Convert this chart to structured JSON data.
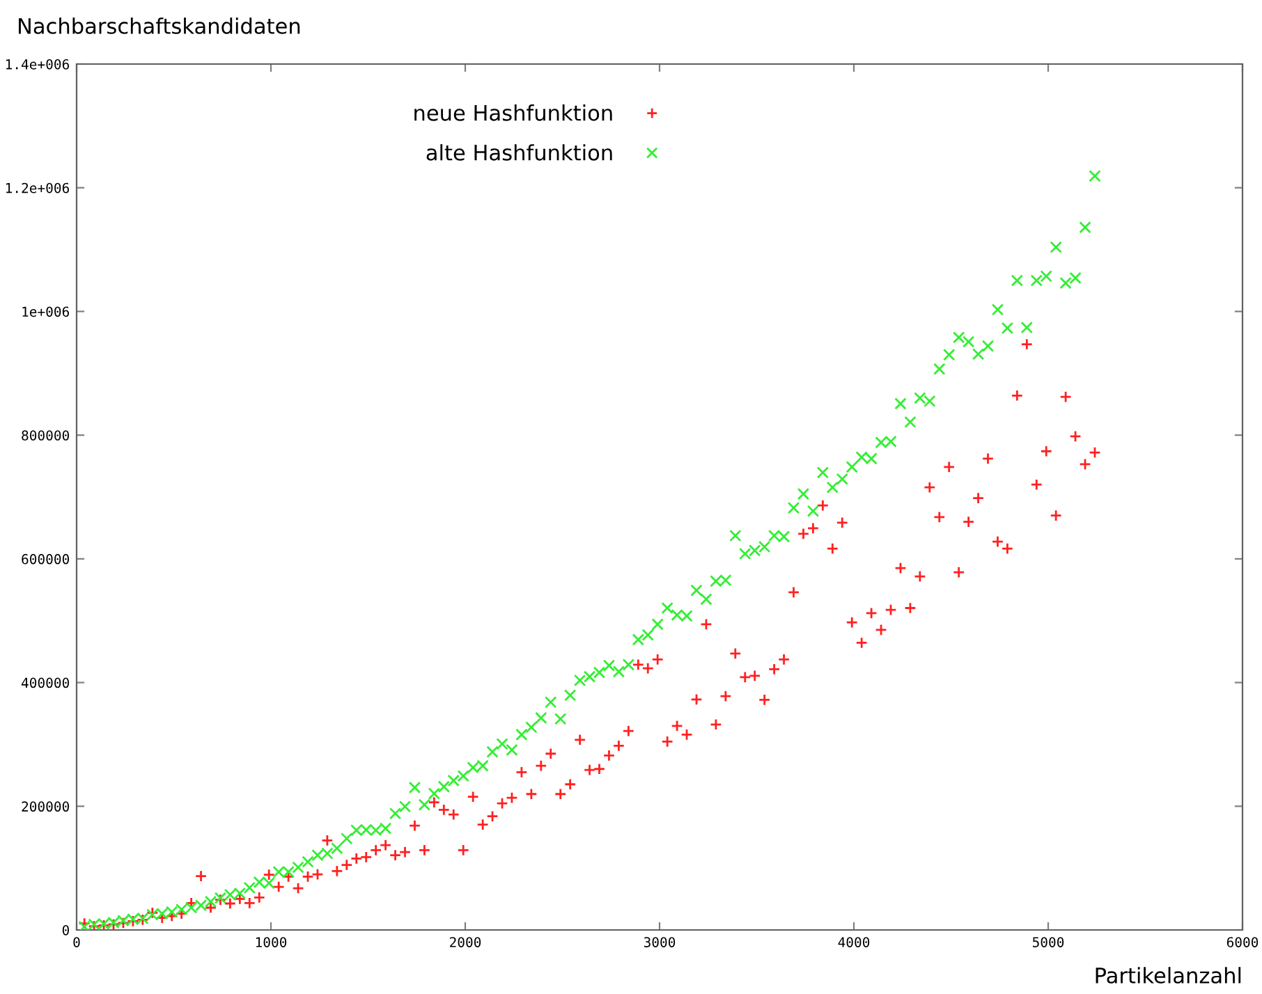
{
  "chart_data": {
    "type": "scatter",
    "ylabel": "Nachbarschaftskandidaten",
    "xlabel": "Partikelanzahl",
    "x": [
      40,
      90,
      140,
      190,
      240,
      290,
      340,
      390,
      440,
      490,
      540,
      590,
      640,
      690,
      740,
      790,
      840,
      890,
      940,
      990,
      1040,
      1090,
      1140,
      1190,
      1240,
      1290,
      1340,
      1390,
      1440,
      1490,
      1540,
      1590,
      1640,
      1690,
      1740,
      1790,
      1840,
      1890,
      1940,
      1990,
      2040,
      2090,
      2140,
      2190,
      2240,
      2290,
      2340,
      2390,
      2440,
      2490,
      2540,
      2590,
      2640,
      2690,
      2740,
      2790,
      2840,
      2890,
      2940,
      2990,
      3040,
      3090,
      3140,
      3190,
      3240,
      3290,
      3340,
      3390,
      3440,
      3490,
      3540,
      3590,
      3640,
      3690,
      3740,
      3790,
      3840,
      3890,
      3940,
      3990,
      4040,
      4090,
      4140,
      4190,
      4240,
      4290,
      4340,
      4390,
      4440,
      4490,
      4540,
      4590,
      4640,
      4690,
      4740,
      4790,
      4840,
      4890,
      4940,
      4990,
      5040,
      5090,
      5140,
      5190,
      5240
    ],
    "series": [
      {
        "name": "neue Hashfunktion",
        "color": "#ff2020",
        "marker": "plus",
        "values": [
          10500,
          6000,
          7500,
          9000,
          11250,
          14250,
          16500,
          27750,
          19500,
          22500,
          26250,
          43500,
          87000,
          36000,
          48750,
          42750,
          50250,
          43500,
          52500,
          89250,
          69750,
          86250,
          67500,
          86250,
          90000,
          144750,
          95250,
          105000,
          115500,
          117750,
          129000,
          137250,
          120750,
          126000,
          168750,
          129000,
          206250,
          194250,
          186750,
          129000,
          215250,
          170250,
          183750,
          204750,
          213750,
          255000,
          219750,
          265500,
          285000,
          219750,
          235500,
          307500,
          258750,
          260250,
          282000,
          297750,
          321750,
          429000,
          423000,
          437250,
          304500,
          330000,
          315750,
          372750,
          494250,
          332250,
          378000,
          447000,
          408750,
          411000,
          372000,
          421500,
          437250,
          546000,
          640500,
          649500,
          686250,
          616500,
          658500,
          497250,
          464250,
          512250,
          485250,
          517500,
          585000,
          520500,
          571500,
          715500,
          667500,
          748500,
          578250,
          660000,
          698250,
          762000,
          627750,
          616500,
          864000,
          947000,
          720000,
          774000,
          670000,
          862000,
          798000,
          753000,
          772000
        ]
      },
      {
        "name": "alte Hashfunktion",
        "color": "#33ee33",
        "marker": "cross",
        "values": [
          5250,
          9000,
          9750,
          12000,
          15000,
          17250,
          18750,
          24750,
          26250,
          29250,
          33000,
          36000,
          39750,
          45750,
          51750,
          57000,
          59250,
          68250,
          77250,
          75750,
          93750,
          93750,
          101250,
          110250,
          120750,
          123750,
          132000,
          147750,
          161250,
          162000,
          161250,
          164250,
          188250,
          199500,
          230250,
          202500,
          220500,
          231750,
          241500,
          249000,
          262500,
          265500,
          288000,
          300750,
          291000,
          315750,
          327750,
          342750,
          368250,
          341250,
          379500,
          403500,
          409500,
          416250,
          427500,
          417750,
          429000,
          469500,
          477000,
          494250,
          520500,
          509250,
          507750,
          549000,
          534750,
          564000,
          565500,
          637500,
          608250,
          613500,
          619500,
          637500,
          636000,
          682500,
          705000,
          677250,
          739500,
          715500,
          729000,
          748500,
          764250,
          762000,
          788250,
          789750,
          851000,
          821250,
          860000,
          855000,
          907000,
          930000,
          958000,
          951000,
          931000,
          944000,
          1003000,
          973000,
          1050000,
          974000,
          1050000,
          1057000,
          1104000,
          1046000,
          1054000,
          1136000,
          1219000
        ]
      }
    ],
    "xlim": [
      0,
      6000
    ],
    "xticks": [
      0,
      1000,
      2000,
      3000,
      4000,
      5000,
      6000
    ],
    "ylim": [
      0,
      1400000
    ],
    "yticks": [
      0,
      200000,
      400000,
      600000,
      800000,
      {
        "value": 1000000,
        "label": "1e+006"
      },
      {
        "value": 1200000,
        "label": "1.2e+006"
      },
      {
        "value": 1400000,
        "label": "1.4e+006"
      }
    ],
    "legend": "top",
    "grid": false
  }
}
